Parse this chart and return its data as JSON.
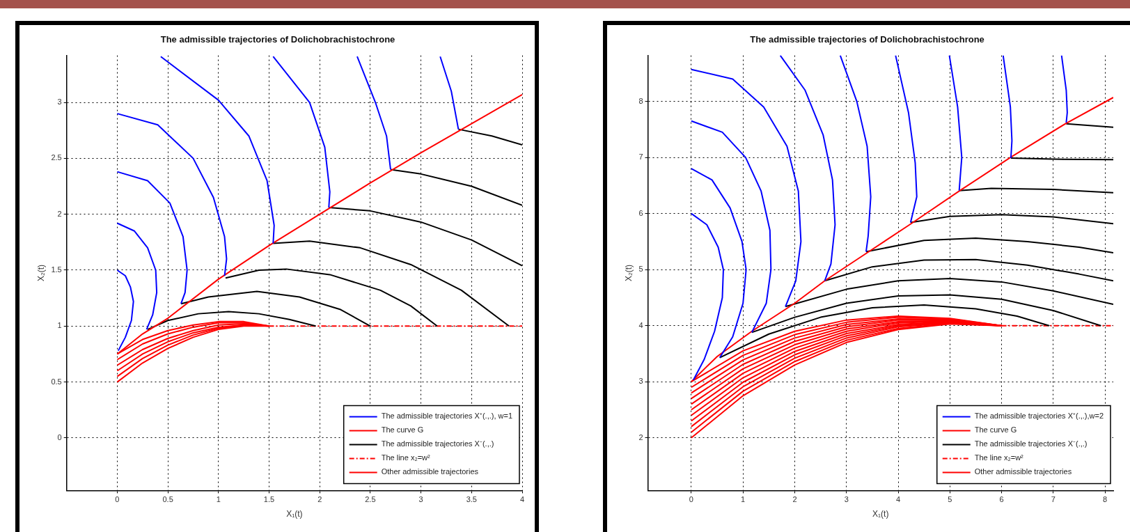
{
  "chart_data": [
    {
      "type": "line",
      "title": "The admissible trajectories of Dolichobrachistochrone",
      "xlabel": "X₁(t)",
      "ylabel": "X₂(t)",
      "xlim": [
        -0.5,
        4
      ],
      "ylim": [
        -0.47,
        3.42
      ],
      "xticks": [
        0,
        0.5,
        1,
        1.5,
        2,
        2.5,
        3,
        3.5,
        4
      ],
      "yticks": [
        0,
        0.5,
        1,
        1.5,
        2,
        2.5,
        3
      ],
      "grid": true,
      "legend": "bottom right",
      "marker": "none",
      "line_style": "solid",
      "series": [
        {
          "name": "The admissible trajectories X⁺(.,.), w=1",
          "color": "#0000ff",
          "x": [
            0,
            0.08,
            0.13,
            0.16,
            0.14,
            0.08,
            0.01
          ],
          "values": [
            1.5,
            1.45,
            1.35,
            1.22,
            1.05,
            0.9,
            0.78
          ]
        },
        {
          "color": "#0000ff",
          "x": [
            0,
            0.17,
            0.3,
            0.38,
            0.39,
            0.35,
            0.29
          ],
          "values": [
            1.92,
            1.85,
            1.7,
            1.5,
            1.3,
            1.1,
            0.97
          ]
        },
        {
          "color": "#0000ff",
          "x": [
            0,
            0.3,
            0.52,
            0.65,
            0.69,
            0.67,
            0.63
          ],
          "values": [
            2.38,
            2.3,
            2.1,
            1.8,
            1.5,
            1.3,
            1.2
          ]
        },
        {
          "color": "#0000ff",
          "x": [
            0,
            0.4,
            0.75,
            0.95,
            1.06,
            1.08,
            1.06
          ],
          "values": [
            2.9,
            2.8,
            2.5,
            2.15,
            1.8,
            1.6,
            1.45
          ]
        },
        {
          "color": "#0000ff",
          "x": [
            0.43,
            1.0,
            1.3,
            1.48,
            1.55,
            1.54
          ],
          "values": [
            3.41,
            3.02,
            2.7,
            2.3,
            1.9,
            1.74
          ]
        },
        {
          "color": "#0000ff",
          "x": [
            1.54,
            1.9,
            2.05,
            2.1,
            2.09
          ],
          "values": [
            3.41,
            3.0,
            2.6,
            2.2,
            2.06
          ]
        },
        {
          "color": "#0000ff",
          "x": [
            2.37,
            2.55,
            2.66,
            2.7
          ],
          "values": [
            3.41,
            3.0,
            2.7,
            2.4
          ]
        },
        {
          "color": "#0000ff",
          "x": [
            3.19,
            3.3,
            3.37
          ],
          "values": [
            3.41,
            3.1,
            2.76
          ]
        },
        {
          "name": "The curve G",
          "color": "#ff0000",
          "x": [
            0,
            0.25,
            0.5,
            1,
            1.5,
            2,
            2.5,
            3,
            3.5,
            4
          ],
          "values": [
            0.75,
            0.93,
            1.07,
            1.42,
            1.72,
            2.0,
            2.28,
            2.55,
            2.81,
            3.07
          ]
        },
        {
          "name": "The admissible trajectories X⁻(.,.)",
          "color": "#000000",
          "x": [
            0.3,
            0.5,
            0.8,
            1.1,
            1.4,
            1.7,
            1.96
          ],
          "values": [
            0.97,
            1.05,
            1.11,
            1.13,
            1.11,
            1.06,
            1.0
          ]
        },
        {
          "color": "#000000",
          "x": [
            0.63,
            0.9,
            1.38,
            1.8,
            2.2,
            2.5
          ],
          "values": [
            1.2,
            1.26,
            1.31,
            1.26,
            1.15,
            1.0
          ]
        },
        {
          "color": "#000000",
          "x": [
            1.07,
            1.4,
            1.67,
            2.1,
            2.6,
            2.9,
            3.16
          ],
          "values": [
            1.43,
            1.5,
            1.51,
            1.46,
            1.32,
            1.18,
            1.0
          ]
        },
        {
          "color": "#000000",
          "x": [
            1.54,
            1.9,
            2.4,
            2.9,
            3.4,
            3.87
          ],
          "values": [
            1.74,
            1.76,
            1.7,
            1.55,
            1.32,
            1.0
          ]
        },
        {
          "color": "#000000",
          "x": [
            2.09,
            2.5,
            3,
            3.5,
            4
          ],
          "values": [
            2.06,
            2.03,
            1.93,
            1.77,
            1.54
          ]
        },
        {
          "color": "#000000",
          "x": [
            2.7,
            3.0,
            3.5,
            4
          ],
          "values": [
            2.4,
            2.36,
            2.25,
            2.08
          ]
        },
        {
          "color": "#000000",
          "x": [
            3.37,
            3.7,
            4
          ],
          "values": [
            2.76,
            2.7,
            2.62
          ]
        },
        {
          "name": "The line x₂=w²",
          "color": "#ff0000",
          "line_style": "dashed",
          "x": [
            1.5,
            4
          ],
          "values": [
            1,
            1
          ]
        },
        {
          "name": "Other admissible trajectories",
          "color": "#ff0000",
          "x": [
            0,
            0.25,
            0.5,
            0.75,
            1,
            1.25,
            1.5
          ],
          "values": [
            0.5,
            0.67,
            0.8,
            0.9,
            0.97,
            1.0,
            1.0
          ]
        },
        {
          "color": "#ff0000",
          "x": [
            0,
            0.25,
            0.5,
            0.75,
            1,
            1.25,
            1.5
          ],
          "values": [
            0.55,
            0.71,
            0.83,
            0.92,
            0.98,
            1.01,
            1.0
          ]
        },
        {
          "color": "#ff0000",
          "x": [
            0,
            0.25,
            0.5,
            0.75,
            1,
            1.25,
            1.5
          ],
          "values": [
            0.6,
            0.75,
            0.86,
            0.94,
            0.99,
            1.01,
            1.0
          ]
        },
        {
          "color": "#ff0000",
          "x": [
            0,
            0.25,
            0.5,
            0.75,
            1,
            1.25,
            1.5
          ],
          "values": [
            0.65,
            0.79,
            0.89,
            0.96,
            1.01,
            1.02,
            1.0
          ]
        },
        {
          "color": "#ff0000",
          "x": [
            0,
            0.25,
            0.5,
            0.75,
            1,
            1.25,
            1.5
          ],
          "values": [
            0.7,
            0.84,
            0.93,
            0.99,
            1.03,
            1.03,
            1.0
          ]
        },
        {
          "color": "#ff0000",
          "x": [
            0,
            0.25,
            0.5,
            0.75,
            1,
            1.25,
            1.5
          ],
          "values": [
            0.75,
            0.88,
            0.96,
            1.01,
            1.04,
            1.04,
            1.0
          ]
        }
      ]
    },
    {
      "type": "line",
      "title": "The admissible trajectories of Dolichobrachistochrone",
      "xlabel": "X₁(t)",
      "ylabel": "X₂(t)",
      "xlim": [
        -0.84,
        8.16
      ],
      "ylim": [
        1.06,
        8.82
      ],
      "xticks": [
        0,
        1,
        2,
        3,
        4,
        5,
        6,
        7,
        8
      ],
      "yticks": [
        2,
        3,
        4,
        5,
        6,
        7,
        8
      ],
      "grid": true,
      "legend": "bottom right",
      "marker": "none",
      "line_style": "solid",
      "series": [
        {
          "name": "The admissible trajectories X⁺(.,.),w=2",
          "color": "#0000ff",
          "x": [
            0,
            0.3,
            0.52,
            0.62,
            0.6,
            0.45,
            0.25,
            0.04
          ],
          "values": [
            6.0,
            5.8,
            5.4,
            5.0,
            4.5,
            3.9,
            3.4,
            3.03
          ]
        },
        {
          "color": "#0000ff",
          "x": [
            0,
            0.4,
            0.75,
            0.98,
            1.06,
            1.0,
            0.8,
            0.55
          ],
          "values": [
            6.8,
            6.6,
            6.1,
            5.5,
            5.0,
            4.4,
            3.8,
            3.43
          ]
        },
        {
          "color": "#0000ff",
          "x": [
            0,
            0.6,
            1.05,
            1.35,
            1.52,
            1.54,
            1.45,
            1.17
          ],
          "values": [
            7.65,
            7.45,
            7.0,
            6.4,
            5.7,
            5.0,
            4.4,
            3.88
          ]
        },
        {
          "color": "#0000ff",
          "x": [
            0,
            0.8,
            1.4,
            1.85,
            2.07,
            2.12,
            2.02,
            1.82
          ],
          "values": [
            8.57,
            8.4,
            7.9,
            7.2,
            6.4,
            5.5,
            4.8,
            4.34
          ]
        },
        {
          "color": "#0000ff",
          "x": [
            1.72,
            2.2,
            2.55,
            2.73,
            2.78,
            2.7,
            2.58
          ],
          "values": [
            8.82,
            8.2,
            7.4,
            6.6,
            5.8,
            5.1,
            4.8
          ]
        },
        {
          "color": "#0000ff",
          "x": [
            2.88,
            3.2,
            3.4,
            3.47,
            3.42,
            3.38
          ],
          "values": [
            8.82,
            8.0,
            7.2,
            6.3,
            5.6,
            5.32
          ]
        },
        {
          "color": "#0000ff",
          "x": [
            3.95,
            4.2,
            4.33,
            4.36,
            4.24
          ],
          "values": [
            8.82,
            7.8,
            6.9,
            6.3,
            5.84
          ]
        },
        {
          "color": "#0000ff",
          "x": [
            4.99,
            5.15,
            5.23,
            5.18
          ],
          "values": [
            8.82,
            7.9,
            7.0,
            6.41
          ]
        },
        {
          "color": "#0000ff",
          "x": [
            6.03,
            6.17,
            6.2,
            6.18
          ],
          "values": [
            8.82,
            7.9,
            7.3,
            6.99
          ]
        },
        {
          "color": "#0000ff",
          "x": [
            7.16,
            7.25,
            7.27,
            7.25
          ],
          "values": [
            8.82,
            8.2,
            7.8,
            7.62
          ]
        },
        {
          "name": "The curve G",
          "color": "#ff0000",
          "x": [
            0,
            0.5,
            1.17,
            2,
            2.58,
            3.4,
            4.22,
            5.18,
            6.17,
            7.23,
            8.16
          ],
          "values": [
            3,
            3.45,
            3.9,
            4.4,
            4.8,
            5.3,
            5.8,
            6.4,
            7.0,
            7.6,
            8.07
          ]
        },
        {
          "name": "The admissible trajectories X⁻(.,.)",
          "color": "#000000",
          "x": [
            7.25,
            8.16
          ],
          "values": [
            7.6,
            7.54
          ]
        },
        {
          "color": "#000000",
          "x": [
            6.18,
            7,
            8.16
          ],
          "values": [
            6.99,
            6.97,
            6.96
          ]
        },
        {
          "color": "#000000",
          "x": [
            5.18,
            5.8,
            7,
            8.16
          ],
          "values": [
            6.41,
            6.45,
            6.43,
            6.37
          ]
        },
        {
          "color": "#000000",
          "x": [
            4.24,
            5,
            6,
            7,
            8.16
          ],
          "values": [
            5.84,
            5.95,
            5.98,
            5.94,
            5.82
          ]
        },
        {
          "color": "#000000",
          "x": [
            3.38,
            4.5,
            5.5,
            6.5,
            7.5,
            8.16
          ],
          "values": [
            5.32,
            5.52,
            5.56,
            5.5,
            5.4,
            5.3
          ]
        },
        {
          "color": "#000000",
          "x": [
            2.58,
            3.5,
            4.5,
            5.5,
            6.5,
            7.5,
            8.16
          ],
          "values": [
            4.8,
            5.05,
            5.17,
            5.18,
            5.08,
            4.92,
            4.8
          ]
        },
        {
          "color": "#000000",
          "x": [
            1.82,
            3,
            4,
            5,
            6,
            7,
            8.16
          ],
          "values": [
            4.34,
            4.65,
            4.8,
            4.84,
            4.78,
            4.62,
            4.38
          ]
        },
        {
          "color": "#000000",
          "x": [
            1.17,
            2,
            3,
            4,
            5,
            6,
            7,
            7.92
          ],
          "values": [
            3.88,
            4.15,
            4.4,
            4.53,
            4.55,
            4.47,
            4.27,
            4.0
          ]
        },
        {
          "color": "#000000",
          "x": [
            0.55,
            1.5,
            2.5,
            3.5,
            4.5,
            5.5,
            6.3,
            6.92
          ],
          "values": [
            3.43,
            3.85,
            4.15,
            4.32,
            4.37,
            4.3,
            4.17,
            4.0
          ]
        },
        {
          "name": "The line x₂=w²",
          "color": "#ff0000",
          "line_style": "dashed",
          "x": [
            6,
            8.16
          ],
          "values": [
            4,
            4
          ]
        },
        {
          "name": "Other admissible trajectories",
          "color": "#ff0000",
          "x": [
            0,
            1,
            2,
            3,
            4,
            5,
            6
          ],
          "values": [
            2,
            2.75,
            3.3,
            3.7,
            3.93,
            4.03,
            4
          ]
        },
        {
          "color": "#ff0000",
          "x": [
            0,
            1,
            2,
            3,
            4,
            5,
            6
          ],
          "values": [
            2.1,
            2.83,
            3.36,
            3.74,
            3.95,
            4.04,
            4
          ]
        },
        {
          "color": "#ff0000",
          "x": [
            0,
            1,
            2,
            3,
            4,
            5,
            6
          ],
          "values": [
            2.2,
            2.91,
            3.42,
            3.78,
            3.98,
            4.05,
            4
          ]
        },
        {
          "color": "#ff0000",
          "x": [
            0,
            1,
            2,
            3,
            4,
            5,
            6
          ],
          "values": [
            2.3,
            2.99,
            3.48,
            3.82,
            4.0,
            4.06,
            4
          ]
        },
        {
          "color": "#ff0000",
          "x": [
            0,
            1,
            2,
            3,
            4,
            5,
            6
          ],
          "values": [
            2.4,
            3.07,
            3.54,
            3.86,
            4.02,
            4.07,
            4
          ]
        },
        {
          "color": "#ff0000",
          "x": [
            0,
            1,
            2,
            3,
            4,
            5,
            6
          ],
          "values": [
            2.5,
            3.15,
            3.6,
            3.9,
            4.05,
            4.08,
            4
          ]
        },
        {
          "color": "#ff0000",
          "x": [
            0,
            1,
            2,
            3,
            4,
            5,
            6
          ],
          "values": [
            2.6,
            3.23,
            3.66,
            3.94,
            4.07,
            4.09,
            4
          ]
        },
        {
          "color": "#ff0000",
          "x": [
            0,
            1,
            2,
            3,
            4,
            5,
            6
          ],
          "values": [
            2.7,
            3.31,
            3.72,
            3.98,
            4.1,
            4.1,
            4
          ]
        },
        {
          "color": "#ff0000",
          "x": [
            0,
            1,
            2,
            3,
            4,
            5,
            6
          ],
          "values": [
            2.8,
            3.39,
            3.78,
            4.02,
            4.12,
            4.11,
            4
          ]
        },
        {
          "color": "#ff0000",
          "x": [
            0,
            1,
            2,
            3,
            4,
            5,
            6
          ],
          "values": [
            2.9,
            3.47,
            3.84,
            4.06,
            4.15,
            4.12,
            4
          ]
        },
        {
          "color": "#ff0000",
          "x": [
            0,
            1,
            2,
            3,
            4,
            5,
            6
          ],
          "values": [
            3,
            3.55,
            3.9,
            4.1,
            4.17,
            4.13,
            4
          ]
        }
      ]
    }
  ]
}
